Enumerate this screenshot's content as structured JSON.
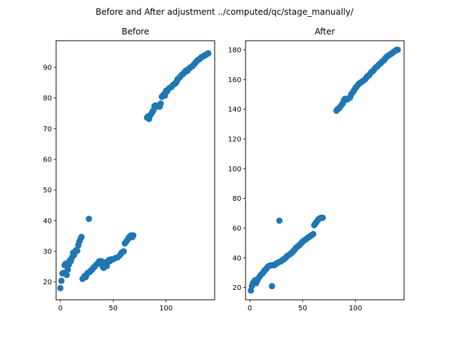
{
  "figure": {
    "suptitle": "Before and After adjustment ../computed/qc/stage_manually/"
  },
  "chart_data": [
    {
      "type": "scatter",
      "title": "Before",
      "xlabel": "",
      "ylabel": "",
      "xlim": [
        -4,
        146
      ],
      "ylim": [
        14.2,
        98.7
      ],
      "xticks": [
        0,
        50,
        100
      ],
      "yticks": [
        20,
        30,
        40,
        50,
        60,
        70,
        80,
        90
      ],
      "grid": false,
      "marker_color": "#1f77b4",
      "series": [
        {
          "points": [
            [
              0,
              18.0
            ],
            [
              1,
              20.4
            ],
            [
              2,
              22.8
            ],
            [
              3,
              23.0
            ],
            [
              4,
              25.5
            ],
            [
              5,
              26.0
            ],
            [
              6,
              22.3
            ],
            [
              7,
              24.0
            ],
            [
              8,
              25.6
            ],
            [
              9,
              27.0
            ],
            [
              10,
              26.8
            ],
            [
              11,
              28.0
            ],
            [
              12,
              29.5
            ],
            [
              13,
              28.8
            ],
            [
              14,
              30.0
            ],
            [
              15,
              30.4
            ],
            [
              16,
              30.2
            ],
            [
              17,
              32.0
            ],
            [
              18,
              33.2
            ],
            [
              19,
              34.0
            ],
            [
              20,
              34.7
            ],
            [
              21,
              21.0
            ],
            [
              22,
              21.4
            ],
            [
              23,
              22.0
            ],
            [
              24,
              21.6
            ],
            [
              25,
              22.5
            ],
            [
              26,
              23.0
            ],
            [
              27,
              40.6
            ],
            [
              28,
              23.3
            ],
            [
              29,
              23.8
            ],
            [
              30,
              24.0
            ],
            [
              31,
              24.6
            ],
            [
              32,
              24.8
            ],
            [
              33,
              25.3
            ],
            [
              34,
              25.6
            ],
            [
              35,
              26.0
            ],
            [
              36,
              26.4
            ],
            [
              37,
              26.8
            ],
            [
              38,
              26.4
            ],
            [
              39,
              26.8
            ],
            [
              40,
              25.0
            ],
            [
              41,
              24.6
            ],
            [
              42,
              25.6
            ],
            [
              43,
              26.4
            ],
            [
              44,
              25.2
            ],
            [
              45,
              26.8
            ],
            [
              46,
              27.2
            ],
            [
              47,
              26.8
            ],
            [
              48,
              27.4
            ],
            [
              50,
              27.4
            ],
            [
              52,
              27.8
            ],
            [
              54,
              28.0
            ],
            [
              56,
              28.6
            ],
            [
              57,
              29.0
            ],
            [
              58,
              29.6
            ],
            [
              59,
              29.8
            ],
            [
              60,
              30.0
            ],
            [
              61,
              32.6
            ],
            [
              62,
              33.0
            ],
            [
              63,
              33.5
            ],
            [
              64,
              34.0
            ],
            [
              65,
              34.6
            ],
            [
              66,
              35.0
            ],
            [
              67,
              35.2
            ],
            [
              68,
              34.6
            ],
            [
              69,
              35.2
            ],
            [
              82,
              73.6
            ],
            [
              83,
              74.0
            ],
            [
              84,
              73.2
            ],
            [
              85,
              74.4
            ],
            [
              86,
              74.8
            ],
            [
              87,
              75.4
            ],
            [
              88,
              76.0
            ],
            [
              89,
              77.4
            ],
            [
              90,
              77.6
            ],
            [
              91,
              77.2
            ],
            [
              92,
              77.4
            ],
            [
              93,
              77.5
            ],
            [
              94,
              77.2
            ],
            [
              95,
              78.2
            ],
            [
              96,
              80.4
            ],
            [
              97,
              80.8
            ],
            [
              98,
              81.2
            ],
            [
              99,
              80.8
            ],
            [
              100,
              82.4
            ],
            [
              101,
              82.2
            ],
            [
              102,
              82.8
            ],
            [
              103,
              83.2
            ],
            [
              104,
              83.4
            ],
            [
              105,
              83.6
            ],
            [
              106,
              84.0
            ],
            [
              107,
              84.4
            ],
            [
              108,
              84.6
            ],
            [
              109,
              84.8
            ],
            [
              110,
              85.4
            ],
            [
              111,
              86.2
            ],
            [
              112,
              86.4
            ],
            [
              113,
              86.8
            ],
            [
              114,
              87.2
            ],
            [
              115,
              87.6
            ],
            [
              116,
              87.8
            ],
            [
              117,
              88.2
            ],
            [
              118,
              88.6
            ],
            [
              119,
              89.0
            ],
            [
              120,
              88.8
            ],
            [
              121,
              89.4
            ],
            [
              122,
              89.6
            ],
            [
              123,
              90.0
            ],
            [
              124,
              90.2
            ],
            [
              125,
              90.4
            ],
            [
              126,
              90.8
            ],
            [
              127,
              91.2
            ],
            [
              128,
              91.6
            ],
            [
              129,
              92.0
            ],
            [
              130,
              92.4
            ],
            [
              131,
              92.6
            ],
            [
              132,
              92.8
            ],
            [
              133,
              93.2
            ],
            [
              134,
              93.4
            ],
            [
              135,
              93.6
            ],
            [
              136,
              93.8
            ],
            [
              137,
              94.0
            ],
            [
              138,
              94.2
            ],
            [
              139,
              94.4
            ],
            [
              140,
              94.6
            ]
          ]
        }
      ]
    },
    {
      "type": "scatter",
      "title": "After",
      "xlabel": "",
      "ylabel": "",
      "xlim": [
        -4,
        146
      ],
      "ylim": [
        11.8,
        186.1
      ],
      "xticks": [
        0,
        50,
        100
      ],
      "yticks": [
        20,
        40,
        60,
        80,
        100,
        120,
        140,
        160,
        180
      ],
      "grid": false,
      "marker_color": "#1f77b4",
      "series": [
        {
          "points": [
            [
              1,
              18.0
            ],
            [
              2,
              21.0
            ],
            [
              3,
              23.0
            ],
            [
              4,
              24.0
            ],
            [
              5,
              25.0
            ],
            [
              6,
              23.0
            ],
            [
              7,
              24.5
            ],
            [
              8,
              26.0
            ],
            [
              9,
              27.0
            ],
            [
              10,
              28.0
            ],
            [
              11,
              29.0
            ],
            [
              12,
              29.5
            ],
            [
              13,
              30.5
            ],
            [
              14,
              31.5
            ],
            [
              15,
              32.0
            ],
            [
              16,
              33.0
            ],
            [
              17,
              34.0
            ],
            [
              18,
              34.5
            ],
            [
              19,
              34.8
            ],
            [
              20,
              35.0
            ],
            [
              21,
              21.0
            ],
            [
              22,
              35.2
            ],
            [
              23,
              35.0
            ],
            [
              24,
              35.5
            ],
            [
              25,
              36.0
            ],
            [
              26,
              36.5
            ],
            [
              27,
              37.0
            ],
            [
              28,
              65.0
            ],
            [
              29,
              37.5
            ],
            [
              30,
              38.0
            ],
            [
              31,
              38.5
            ],
            [
              32,
              39.0
            ],
            [
              33,
              39.5
            ],
            [
              34,
              40.0
            ],
            [
              35,
              41.0
            ],
            [
              36,
              41.5
            ],
            [
              37,
              42.0
            ],
            [
              38,
              42.5
            ],
            [
              39,
              43.0
            ],
            [
              40,
              43.5
            ],
            [
              41,
              44.5
            ],
            [
              42,
              45.0
            ],
            [
              43,
              46.0
            ],
            [
              44,
              47.0
            ],
            [
              45,
              47.5
            ],
            [
              46,
              48.0
            ],
            [
              47,
              48.5
            ],
            [
              48,
              49.5
            ],
            [
              49,
              50.0
            ],
            [
              50,
              51.0
            ],
            [
              51,
              51.5
            ],
            [
              52,
              52.0
            ],
            [
              53,
              52.5
            ],
            [
              54,
              53.0
            ],
            [
              55,
              53.5
            ],
            [
              56,
              54.0
            ],
            [
              57,
              54.5
            ],
            [
              58,
              55.0
            ],
            [
              59,
              55.5
            ],
            [
              60,
              56.0
            ],
            [
              61,
              62.0
            ],
            [
              62,
              63.0
            ],
            [
              63,
              64.0
            ],
            [
              64,
              65.0
            ],
            [
              65,
              66.0
            ],
            [
              66,
              66.5
            ],
            [
              67,
              66.8
            ],
            [
              68,
              67.0
            ],
            [
              69,
              67.0
            ],
            [
              82,
              139.0
            ],
            [
              83,
              140.0
            ],
            [
              84,
              140.5
            ],
            [
              85,
              141.0
            ],
            [
              86,
              142.0
            ],
            [
              87,
              143.0
            ],
            [
              88,
              144.0
            ],
            [
              89,
              146.0
            ],
            [
              90,
              147.0
            ],
            [
              91,
              147.0
            ],
            [
              92,
              146.5
            ],
            [
              93,
              147.0
            ],
            [
              94,
              147.5
            ],
            [
              95,
              148.0
            ],
            [
              96,
              150.0
            ],
            [
              97,
              151.0
            ],
            [
              98,
              152.0
            ],
            [
              99,
              153.0
            ],
            [
              100,
              154.5
            ],
            [
              101,
              155.0
            ],
            [
              102,
              156.0
            ],
            [
              103,
              157.0
            ],
            [
              104,
              157.5
            ],
            [
              105,
              158.0
            ],
            [
              106,
              158.5
            ],
            [
              107,
              159.0
            ],
            [
              108,
              159.5
            ],
            [
              109,
              160.0
            ],
            [
              110,
              161.0
            ],
            [
              111,
              162.0
            ],
            [
              112,
              162.5
            ],
            [
              113,
              163.0
            ],
            [
              114,
              164.0
            ],
            [
              115,
              165.0
            ],
            [
              116,
              165.5
            ],
            [
              117,
              166.0
            ],
            [
              118,
              167.0
            ],
            [
              119,
              168.0
            ],
            [
              120,
              168.5
            ],
            [
              121,
              169.0
            ],
            [
              122,
              170.0
            ],
            [
              123,
              170.5
            ],
            [
              124,
              171.0
            ],
            [
              125,
              172.0
            ],
            [
              126,
              172.5
            ],
            [
              127,
              173.0
            ],
            [
              128,
              174.0
            ],
            [
              129,
              175.0
            ],
            [
              130,
              175.5
            ],
            [
              131,
              176.0
            ],
            [
              132,
              176.5
            ],
            [
              133,
              177.0
            ],
            [
              134,
              177.5
            ],
            [
              135,
              178.0
            ],
            [
              136,
              178.5
            ],
            [
              137,
              179.0
            ],
            [
              138,
              179.5
            ],
            [
              139,
              180.0
            ],
            [
              140,
              180.0
            ]
          ]
        }
      ]
    }
  ]
}
